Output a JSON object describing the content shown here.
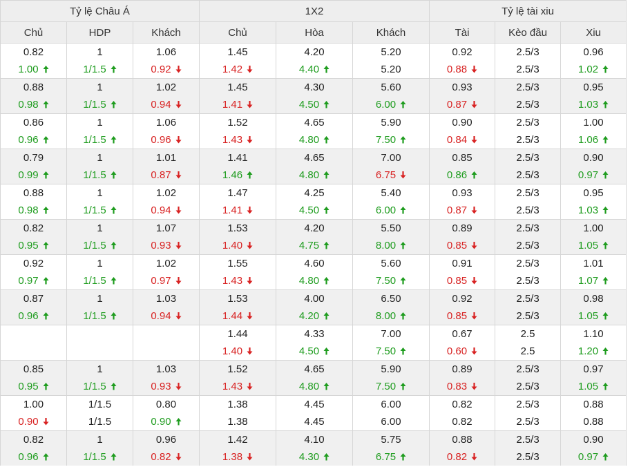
{
  "colors": {
    "up": "#1e9c1e",
    "down": "#d82222",
    "header_bg": "#eeeeee",
    "odd_row_bg": "#f0f0f0"
  },
  "headers": {
    "groups": [
      "Tỷ lệ Châu Á",
      "1X2",
      "Tỷ lệ tài xiu"
    ],
    "columns": [
      "Chủ",
      "HDP",
      "Khách",
      "Chủ",
      "Hòa",
      "Khách",
      "Tài",
      "Kèo đầu",
      "Xiu"
    ]
  },
  "rows": [
    {
      "top": [
        "0.82",
        "1",
        "1.06",
        "1.45",
        "4.20",
        "5.20",
        "0.92",
        "2.5/3",
        "0.96"
      ],
      "bottom": [
        {
          "v": "1.00",
          "t": "up"
        },
        {
          "v": "1/1.5",
          "t": "up"
        },
        {
          "v": "0.92",
          "t": "down"
        },
        {
          "v": "1.42",
          "t": "down"
        },
        {
          "v": "4.40",
          "t": "up"
        },
        {
          "v": "5.20",
          "t": "none"
        },
        {
          "v": "0.88",
          "t": "down"
        },
        {
          "v": "2.5/3",
          "t": "none"
        },
        {
          "v": "1.02",
          "t": "up"
        }
      ]
    },
    {
      "top": [
        "0.88",
        "1",
        "1.02",
        "1.45",
        "4.30",
        "5.60",
        "0.93",
        "2.5/3",
        "0.95"
      ],
      "bottom": [
        {
          "v": "0.98",
          "t": "up"
        },
        {
          "v": "1/1.5",
          "t": "up"
        },
        {
          "v": "0.94",
          "t": "down"
        },
        {
          "v": "1.41",
          "t": "down"
        },
        {
          "v": "4.50",
          "t": "up"
        },
        {
          "v": "6.00",
          "t": "up"
        },
        {
          "v": "0.87",
          "t": "down"
        },
        {
          "v": "2.5/3",
          "t": "none"
        },
        {
          "v": "1.03",
          "t": "up"
        }
      ]
    },
    {
      "top": [
        "0.86",
        "1",
        "1.06",
        "1.52",
        "4.65",
        "5.90",
        "0.90",
        "2.5/3",
        "1.00"
      ],
      "bottom": [
        {
          "v": "0.96",
          "t": "up"
        },
        {
          "v": "1/1.5",
          "t": "up"
        },
        {
          "v": "0.96",
          "t": "down"
        },
        {
          "v": "1.43",
          "t": "down"
        },
        {
          "v": "4.80",
          "t": "up"
        },
        {
          "v": "7.50",
          "t": "up"
        },
        {
          "v": "0.84",
          "t": "down"
        },
        {
          "v": "2.5/3",
          "t": "none"
        },
        {
          "v": "1.06",
          "t": "up"
        }
      ]
    },
    {
      "top": [
        "0.79",
        "1",
        "1.01",
        "1.41",
        "4.65",
        "7.00",
        "0.85",
        "2.5/3",
        "0.90"
      ],
      "bottom": [
        {
          "v": "0.99",
          "t": "up"
        },
        {
          "v": "1/1.5",
          "t": "up"
        },
        {
          "v": "0.87",
          "t": "down"
        },
        {
          "v": "1.46",
          "t": "up"
        },
        {
          "v": "4.80",
          "t": "up"
        },
        {
          "v": "6.75",
          "t": "down"
        },
        {
          "v": "0.86",
          "t": "up"
        },
        {
          "v": "2.5/3",
          "t": "none"
        },
        {
          "v": "0.97",
          "t": "up"
        }
      ]
    },
    {
      "top": [
        "0.88",
        "1",
        "1.02",
        "1.47",
        "4.25",
        "5.40",
        "0.93",
        "2.5/3",
        "0.95"
      ],
      "bottom": [
        {
          "v": "0.98",
          "t": "up"
        },
        {
          "v": "1/1.5",
          "t": "up"
        },
        {
          "v": "0.94",
          "t": "down"
        },
        {
          "v": "1.41",
          "t": "down"
        },
        {
          "v": "4.50",
          "t": "up"
        },
        {
          "v": "6.00",
          "t": "up"
        },
        {
          "v": "0.87",
          "t": "down"
        },
        {
          "v": "2.5/3",
          "t": "none"
        },
        {
          "v": "1.03",
          "t": "up"
        }
      ]
    },
    {
      "top": [
        "0.82",
        "1",
        "1.07",
        "1.53",
        "4.20",
        "5.50",
        "0.89",
        "2.5/3",
        "1.00"
      ],
      "bottom": [
        {
          "v": "0.95",
          "t": "up"
        },
        {
          "v": "1/1.5",
          "t": "up"
        },
        {
          "v": "0.93",
          "t": "down"
        },
        {
          "v": "1.40",
          "t": "down"
        },
        {
          "v": "4.75",
          "t": "up"
        },
        {
          "v": "8.00",
          "t": "up"
        },
        {
          "v": "0.85",
          "t": "down"
        },
        {
          "v": "2.5/3",
          "t": "none"
        },
        {
          "v": "1.05",
          "t": "up"
        }
      ]
    },
    {
      "top": [
        "0.92",
        "1",
        "1.02",
        "1.55",
        "4.60",
        "5.60",
        "0.91",
        "2.5/3",
        "1.01"
      ],
      "bottom": [
        {
          "v": "0.97",
          "t": "up"
        },
        {
          "v": "1/1.5",
          "t": "up"
        },
        {
          "v": "0.97",
          "t": "down"
        },
        {
          "v": "1.43",
          "t": "down"
        },
        {
          "v": "4.80",
          "t": "up"
        },
        {
          "v": "7.50",
          "t": "up"
        },
        {
          "v": "0.85",
          "t": "down"
        },
        {
          "v": "2.5/3",
          "t": "none"
        },
        {
          "v": "1.07",
          "t": "up"
        }
      ]
    },
    {
      "top": [
        "0.87",
        "1",
        "1.03",
        "1.53",
        "4.00",
        "6.50",
        "0.92",
        "2.5/3",
        "0.98"
      ],
      "bottom": [
        {
          "v": "0.96",
          "t": "up"
        },
        {
          "v": "1/1.5",
          "t": "up"
        },
        {
          "v": "0.94",
          "t": "down"
        },
        {
          "v": "1.44",
          "t": "down"
        },
        {
          "v": "4.20",
          "t": "up"
        },
        {
          "v": "8.00",
          "t": "up"
        },
        {
          "v": "0.85",
          "t": "down"
        },
        {
          "v": "2.5/3",
          "t": "none"
        },
        {
          "v": "1.05",
          "t": "up"
        }
      ]
    },
    {
      "top": [
        "",
        "",
        "",
        "1.44",
        "4.33",
        "7.00",
        "0.67",
        "2.5",
        "1.10"
      ],
      "bottom": [
        {
          "v": "",
          "t": "none"
        },
        {
          "v": "",
          "t": "none"
        },
        {
          "v": "",
          "t": "none"
        },
        {
          "v": "1.40",
          "t": "down"
        },
        {
          "v": "4.50",
          "t": "up"
        },
        {
          "v": "7.50",
          "t": "up"
        },
        {
          "v": "0.60",
          "t": "down"
        },
        {
          "v": "2.5",
          "t": "none"
        },
        {
          "v": "1.20",
          "t": "up"
        }
      ]
    },
    {
      "top": [
        "0.85",
        "1",
        "1.03",
        "1.52",
        "4.65",
        "5.90",
        "0.89",
        "2.5/3",
        "0.97"
      ],
      "bottom": [
        {
          "v": "0.95",
          "t": "up"
        },
        {
          "v": "1/1.5",
          "t": "up"
        },
        {
          "v": "0.93",
          "t": "down"
        },
        {
          "v": "1.43",
          "t": "down"
        },
        {
          "v": "4.80",
          "t": "up"
        },
        {
          "v": "7.50",
          "t": "up"
        },
        {
          "v": "0.83",
          "t": "down"
        },
        {
          "v": "2.5/3",
          "t": "none"
        },
        {
          "v": "1.05",
          "t": "up"
        }
      ]
    },
    {
      "top": [
        "1.00",
        "1/1.5",
        "0.80",
        "1.38",
        "4.45",
        "6.00",
        "0.82",
        "2.5/3",
        "0.88"
      ],
      "bottom": [
        {
          "v": "0.90",
          "t": "down"
        },
        {
          "v": "1/1.5",
          "t": "none"
        },
        {
          "v": "0.90",
          "t": "up"
        },
        {
          "v": "1.38",
          "t": "none"
        },
        {
          "v": "4.45",
          "t": "none"
        },
        {
          "v": "6.00",
          "t": "none"
        },
        {
          "v": "0.82",
          "t": "none"
        },
        {
          "v": "2.5/3",
          "t": "none"
        },
        {
          "v": "0.88",
          "t": "none"
        }
      ]
    },
    {
      "top": [
        "0.82",
        "1",
        "0.96",
        "1.42",
        "4.10",
        "5.75",
        "0.88",
        "2.5/3",
        "0.90"
      ],
      "bottom": [
        {
          "v": "0.96",
          "t": "up"
        },
        {
          "v": "1/1.5",
          "t": "up"
        },
        {
          "v": "0.82",
          "t": "down"
        },
        {
          "v": "1.38",
          "t": "down"
        },
        {
          "v": "4.30",
          "t": "up"
        },
        {
          "v": "6.75",
          "t": "up"
        },
        {
          "v": "0.82",
          "t": "down"
        },
        {
          "v": "2.5/3",
          "t": "none"
        },
        {
          "v": "0.97",
          "t": "up"
        }
      ]
    }
  ]
}
